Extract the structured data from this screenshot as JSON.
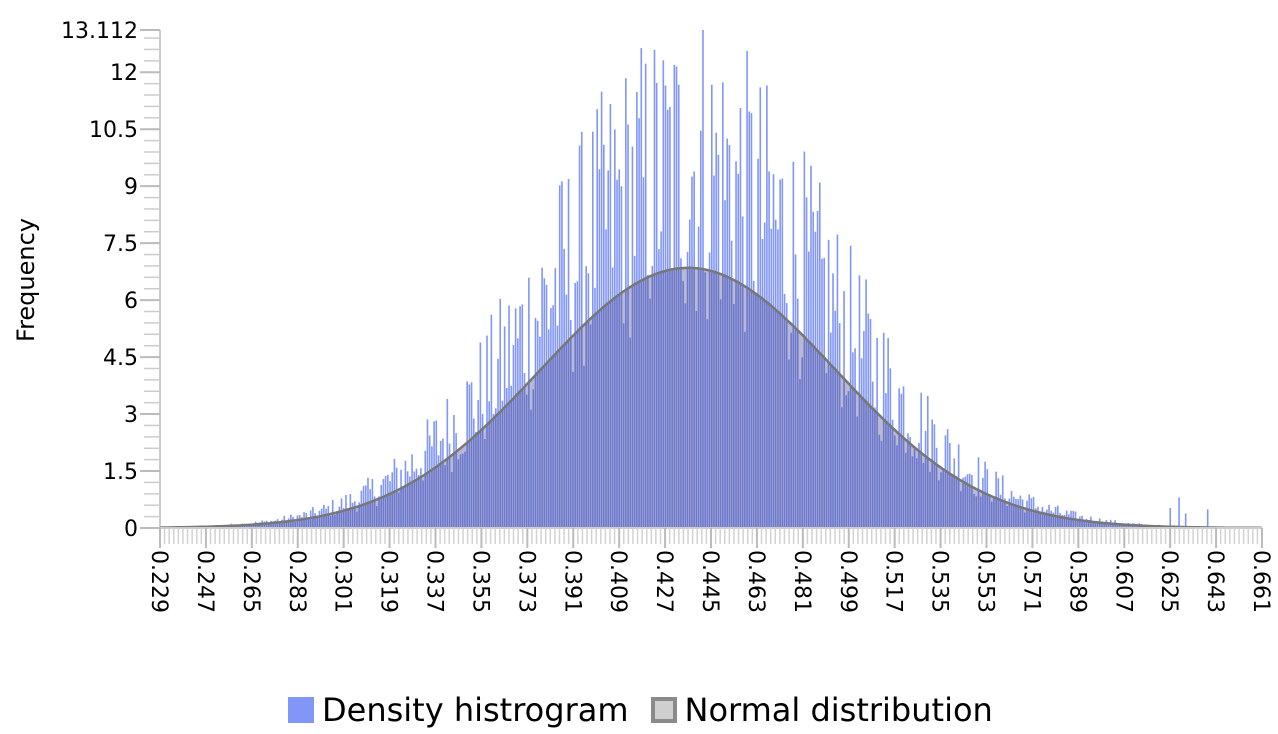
{
  "chart_data": {
    "type": "bar",
    "title": "",
    "xlabel": "",
    "ylabel": "Frequency",
    "xlim": [
      0.229,
      0.661
    ],
    "ylim": [
      0,
      13.112
    ],
    "x_ticks": [
      "0.229",
      "0.247",
      "0.265",
      "0.283",
      "0.301",
      "0.319",
      "0.337",
      "0.355",
      "0.373",
      "0.391",
      "0.409",
      "0.427",
      "0.445",
      "0.463",
      "0.481",
      "0.499",
      "0.517",
      "0.535",
      "0.553",
      "0.571",
      "0.589",
      "0.607",
      "0.625",
      "0.643",
      "0.661"
    ],
    "y_ticks": [
      "0",
      "1.5",
      "3",
      "4.5",
      "6",
      "7.5",
      "9",
      "10.5",
      "12",
      "13.112"
    ],
    "grid": false,
    "legend_position": "bottom",
    "series": [
      {
        "name": "Density histrogram",
        "color": "#8196f7",
        "kind": "histogram",
        "bins": 500,
        "mean": 0.436,
        "sd": 0.058,
        "max_observed": 13.112
      },
      {
        "name": "Normal distribution",
        "color": "#5566bb",
        "kind": "normal_pdf",
        "mean": 0.436,
        "sd": 0.058,
        "peak": 6.85
      }
    ]
  },
  "legend": {
    "hist_label": "Density histrogram",
    "normal_label": "Normal distribution"
  }
}
